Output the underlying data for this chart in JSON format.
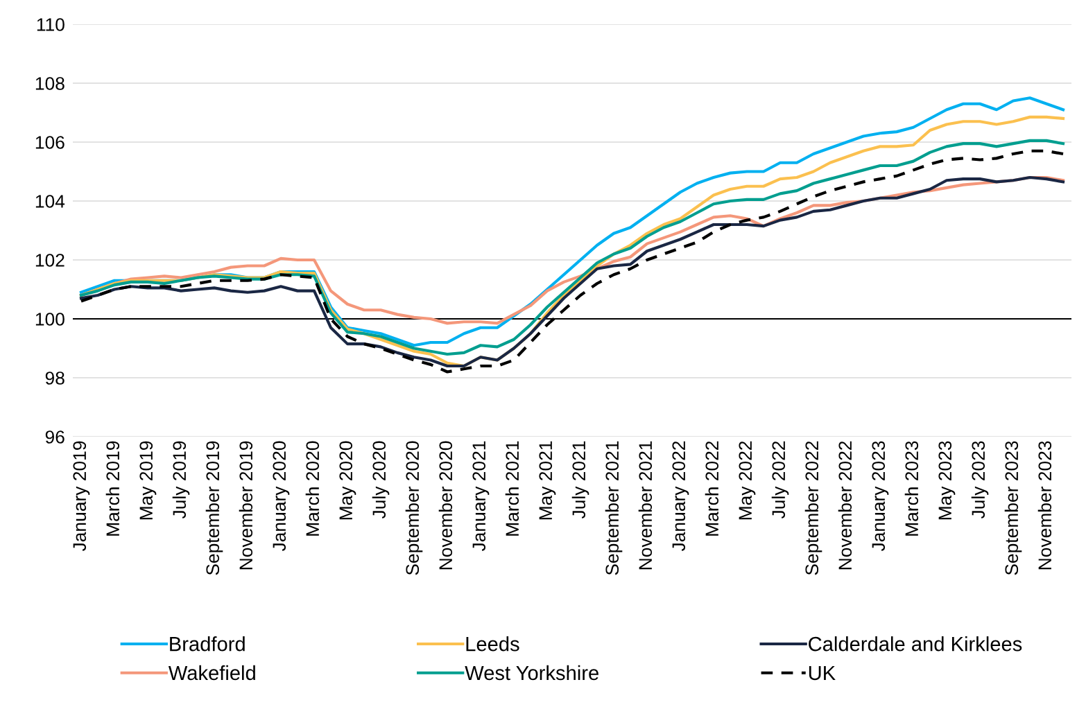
{
  "chart_data": {
    "type": "line",
    "categories": [
      "January 2019",
      null,
      "March 2019",
      null,
      "May 2019",
      null,
      "July 2019",
      null,
      "September 2019",
      null,
      "November 2019",
      null,
      "January 2020",
      null,
      "March 2020",
      null,
      "May 2020",
      null,
      "July 2020",
      null,
      "September 2020",
      null,
      "November 2020",
      null,
      "January 2021",
      null,
      "March 2021",
      null,
      "May 2021",
      null,
      "July 2021",
      null,
      "September 2021",
      null,
      "November 2021",
      null,
      "January 2022",
      null,
      "March 2022",
      null,
      "May 2022",
      null,
      "July 2022",
      null,
      "September 2022",
      null,
      "November 2022",
      null,
      "January 2023",
      null,
      "March 2023",
      null,
      "May 2023",
      null,
      "July 2023",
      null,
      "September 2023",
      null,
      "November 2023",
      null
    ],
    "series": [
      {
        "name": "Bradford",
        "color": "#00b0f0",
        "line_style": "solid",
        "values": [
          100.9,
          101.1,
          101.3,
          101.3,
          101.3,
          101.3,
          101.3,
          101.4,
          101.5,
          101.5,
          101.4,
          101.4,
          101.6,
          101.6,
          101.6,
          100.4,
          99.7,
          99.6,
          99.5,
          99.3,
          99.1,
          99.2,
          99.2,
          99.5,
          99.7,
          99.7,
          100.1,
          100.5,
          101.0,
          101.5,
          102.0,
          102.5,
          102.9,
          103.1,
          103.5,
          103.9,
          104.3,
          104.6,
          104.8,
          104.95,
          105.0,
          105.0,
          105.3,
          105.3,
          105.6,
          105.8,
          106.0,
          106.2,
          106.3,
          106.35,
          106.5,
          106.8,
          107.1,
          107.3,
          107.3,
          107.1,
          107.4,
          107.5,
          107.3,
          107.1
        ]
      },
      {
        "name": "Wakefield",
        "color": "#f4977a",
        "line_style": "solid",
        "values": [
          100.8,
          101.0,
          101.2,
          101.35,
          101.4,
          101.45,
          101.4,
          101.5,
          101.6,
          101.75,
          101.8,
          101.8,
          102.05,
          102.0,
          102.0,
          100.95,
          100.5,
          100.3,
          100.3,
          100.15,
          100.05,
          100.0,
          99.85,
          99.9,
          99.9,
          99.85,
          100.15,
          100.45,
          100.95,
          101.25,
          101.45,
          101.7,
          101.95,
          102.1,
          102.55,
          102.75,
          102.95,
          103.2,
          103.45,
          103.5,
          103.4,
          103.15,
          103.4,
          103.6,
          103.85,
          103.85,
          103.95,
          104.0,
          104.1,
          104.2,
          104.3,
          104.35,
          104.45,
          104.55,
          104.6,
          104.65,
          104.7,
          104.8,
          104.8,
          104.7
        ]
      },
      {
        "name": "Leeds",
        "color": "#fbc04f",
        "line_style": "solid",
        "values": [
          100.8,
          101.0,
          101.2,
          101.3,
          101.3,
          101.3,
          101.3,
          101.4,
          101.5,
          101.45,
          101.4,
          101.4,
          101.6,
          101.55,
          101.55,
          100.3,
          99.65,
          99.5,
          99.3,
          99.1,
          98.9,
          98.8,
          98.5,
          98.4,
          98.7,
          98.6,
          99.0,
          99.5,
          100.2,
          100.8,
          101.3,
          101.8,
          102.2,
          102.5,
          102.9,
          103.2,
          103.4,
          103.8,
          104.2,
          104.4,
          104.5,
          104.5,
          104.75,
          104.8,
          105.0,
          105.3,
          105.5,
          105.7,
          105.85,
          105.85,
          105.9,
          106.4,
          106.6,
          106.7,
          106.7,
          106.6,
          106.7,
          106.85,
          106.85,
          106.8
        ]
      },
      {
        "name": "West Yorkshire",
        "color": "#009e8f",
        "line_style": "solid",
        "values": [
          100.8,
          100.95,
          101.15,
          101.25,
          101.25,
          101.2,
          101.3,
          101.4,
          101.45,
          101.4,
          101.35,
          101.35,
          101.5,
          101.5,
          101.45,
          100.2,
          99.55,
          99.5,
          99.4,
          99.2,
          99.0,
          98.9,
          98.8,
          98.85,
          99.1,
          99.05,
          99.3,
          99.8,
          100.4,
          100.9,
          101.4,
          101.9,
          102.2,
          102.4,
          102.8,
          103.1,
          103.3,
          103.6,
          103.9,
          104.0,
          104.05,
          104.05,
          104.25,
          104.35,
          104.6,
          104.75,
          104.9,
          105.05,
          105.2,
          105.2,
          105.35,
          105.65,
          105.85,
          105.95,
          105.95,
          105.85,
          105.95,
          106.05,
          106.05,
          105.95
        ]
      },
      {
        "name": "Calderdale and Kirklees",
        "color": "#1a2744",
        "line_style": "solid",
        "values": [
          100.7,
          100.8,
          101.0,
          101.1,
          101.05,
          101.05,
          100.95,
          101.0,
          101.05,
          100.95,
          100.9,
          100.95,
          101.1,
          100.95,
          100.95,
          99.7,
          99.15,
          99.15,
          99.05,
          98.85,
          98.7,
          98.6,
          98.4,
          98.4,
          98.7,
          98.6,
          99.0,
          99.5,
          100.1,
          100.7,
          101.2,
          101.7,
          101.8,
          101.85,
          102.3,
          102.5,
          102.7,
          102.95,
          103.2,
          103.2,
          103.2,
          103.15,
          103.35,
          103.45,
          103.65,
          103.7,
          103.85,
          104.0,
          104.1,
          104.1,
          104.25,
          104.4,
          104.7,
          104.75,
          104.75,
          104.65,
          104.7,
          104.8,
          104.75,
          104.65
        ]
      },
      {
        "name": "UK",
        "color": "#000000",
        "line_style": "dashed",
        "values": [
          100.6,
          100.8,
          101.0,
          101.1,
          101.1,
          101.1,
          101.1,
          101.2,
          101.3,
          101.3,
          101.3,
          101.35,
          101.5,
          101.45,
          101.4,
          100.0,
          99.4,
          99.15,
          99.0,
          98.8,
          98.6,
          98.45,
          98.2,
          98.3,
          98.4,
          98.4,
          98.6,
          99.2,
          99.8,
          100.3,
          100.8,
          101.2,
          101.5,
          101.7,
          102.0,
          102.2,
          102.4,
          102.6,
          102.95,
          103.2,
          103.35,
          103.45,
          103.65,
          103.9,
          104.15,
          104.35,
          104.5,
          104.65,
          104.75,
          104.85,
          105.05,
          105.25,
          105.4,
          105.45,
          105.4,
          105.45,
          105.6,
          105.7,
          105.7,
          105.6
        ]
      }
    ],
    "ylim": [
      96,
      110
    ],
    "yticks": [
      96,
      98,
      100,
      102,
      104,
      106,
      108,
      110
    ],
    "ref_lines": [
      {
        "axis": "y",
        "value": 100,
        "color": "#000000",
        "line_style": "solid"
      }
    ],
    "grid": "y",
    "legend": "bottom",
    "marker": "none"
  }
}
